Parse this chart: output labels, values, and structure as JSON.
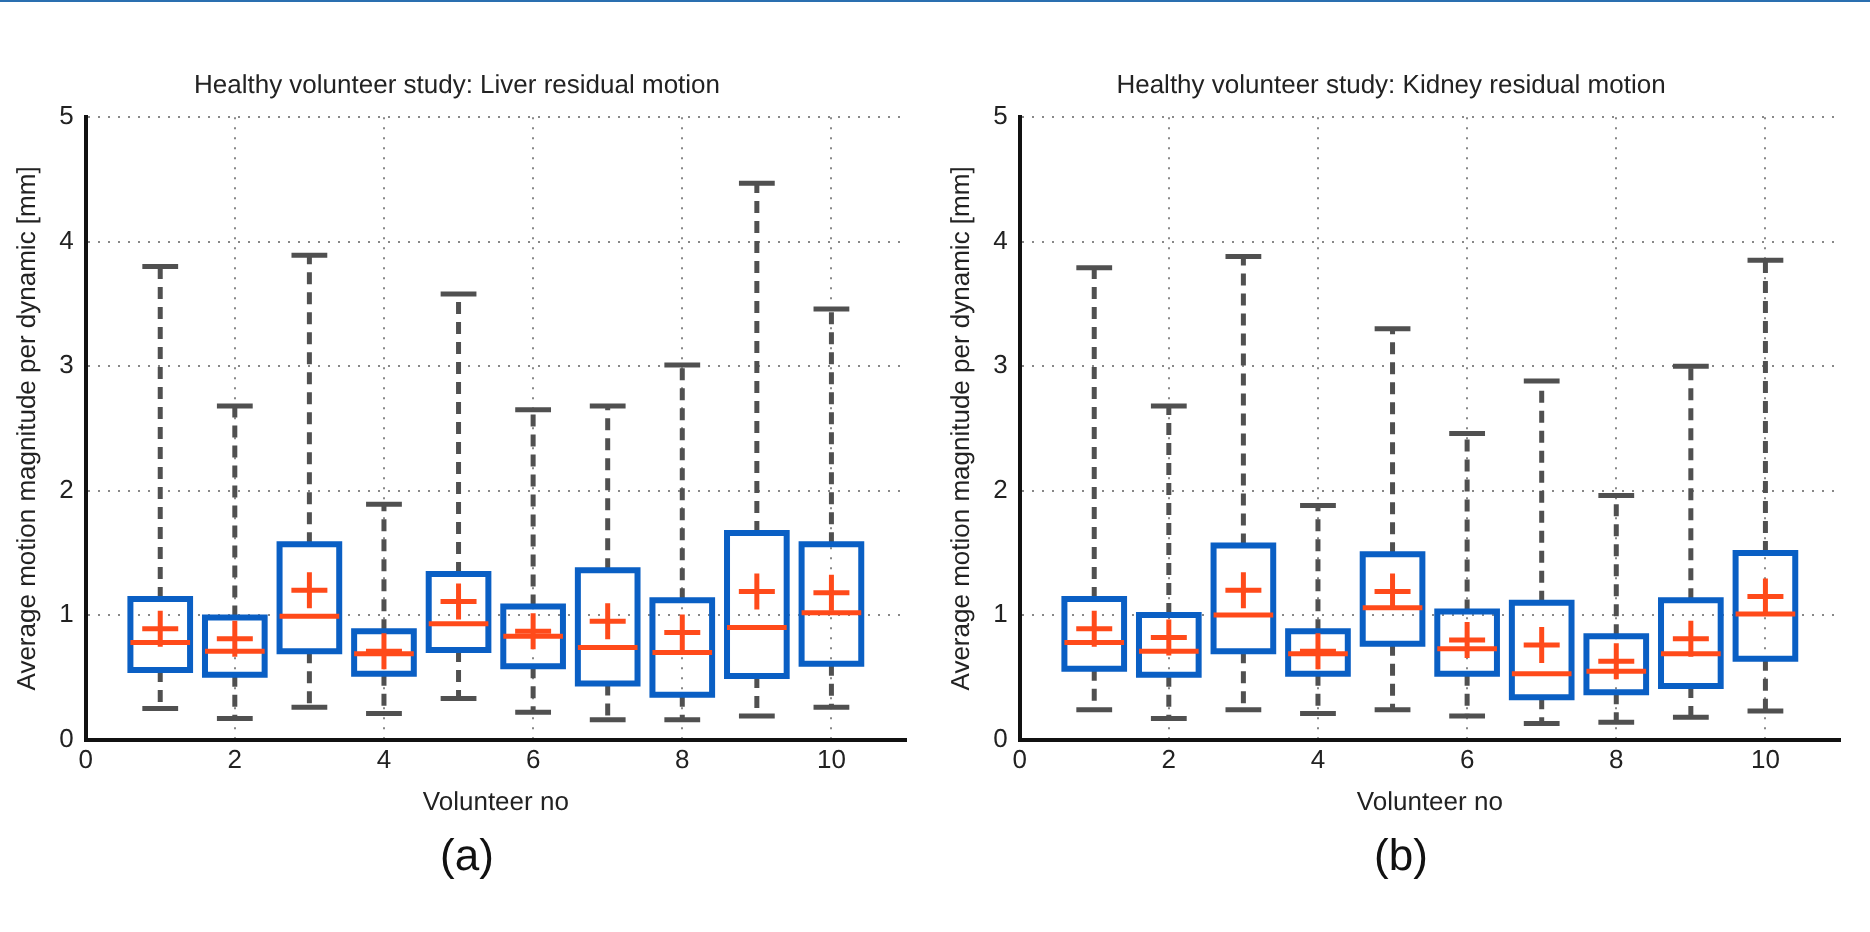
{
  "chart_data": [
    {
      "type": "box",
      "title": "Healthy volunteer study: Liver residual motion",
      "xlabel": "Volunteer no",
      "ylabel": "Average motion magnitude per dynamic [mm]",
      "annotations": [
        "(a)"
      ],
      "x": [
        1,
        2,
        3,
        4,
        5,
        6,
        7,
        8,
        9,
        10
      ],
      "xlim": [
        0,
        11
      ],
      "xticks": [
        0,
        2,
        4,
        6,
        8,
        10
      ],
      "ylim": [
        0,
        5
      ],
      "yticks": [
        0,
        1,
        2,
        3,
        4,
        5
      ],
      "grid": true,
      "series": [
        {
          "color": "#0a5fc4",
          "boxes": [
            {
              "low": 0.25,
              "q1": 0.56,
              "median": 0.78,
              "q3": 1.13,
              "high": 3.8,
              "mean": 0.89
            },
            {
              "low": 0.17,
              "q1": 0.52,
              "median": 0.71,
              "q3": 0.98,
              "high": 2.68,
              "mean": 0.81
            },
            {
              "low": 0.26,
              "q1": 0.71,
              "median": 0.99,
              "q3": 1.57,
              "high": 3.89,
              "mean": 1.2
            },
            {
              "low": 0.21,
              "q1": 0.53,
              "median": 0.69,
              "q3": 0.87,
              "high": 1.89,
              "mean": 0.71
            },
            {
              "low": 0.33,
              "q1": 0.72,
              "median": 0.93,
              "q3": 1.33,
              "high": 3.58,
              "mean": 1.11
            },
            {
              "low": 0.22,
              "q1": 0.59,
              "median": 0.83,
              "q3": 1.07,
              "high": 2.65,
              "mean": 0.87
            },
            {
              "low": 0.16,
              "q1": 0.45,
              "median": 0.74,
              "q3": 1.36,
              "high": 2.68,
              "mean": 0.95
            },
            {
              "low": 0.16,
              "q1": 0.36,
              "median": 0.7,
              "q3": 1.12,
              "high": 3.01,
              "mean": 0.86
            },
            {
              "low": 0.19,
              "q1": 0.51,
              "median": 0.9,
              "q3": 1.66,
              "high": 4.47,
              "mean": 1.19
            },
            {
              "low": 0.26,
              "q1": 0.61,
              "median": 1.02,
              "q3": 1.57,
              "high": 3.46,
              "mean": 1.18
            }
          ]
        }
      ]
    },
    {
      "type": "box",
      "title": "Healthy volunteer study: Kidney residual motion",
      "xlabel": "Volunteer no",
      "ylabel": "Average motion magnitude per dynamic [mm]",
      "annotations": [
        "(b)"
      ],
      "x": [
        1,
        2,
        3,
        4,
        5,
        6,
        7,
        8,
        9,
        10
      ],
      "xlim": [
        0,
        11
      ],
      "xticks": [
        0,
        2,
        4,
        6,
        8,
        10
      ],
      "ylim": [
        0,
        5
      ],
      "yticks": [
        0,
        1,
        2,
        3,
        4,
        5
      ],
      "grid": true,
      "series": [
        {
          "color": "#0a5fc4",
          "boxes": [
            {
              "low": 0.24,
              "q1": 0.57,
              "median": 0.78,
              "q3": 1.13,
              "high": 3.79,
              "mean": 0.89
            },
            {
              "low": 0.17,
              "q1": 0.52,
              "median": 0.71,
              "q3": 1.0,
              "high": 2.68,
              "mean": 0.82
            },
            {
              "low": 0.24,
              "q1": 0.71,
              "median": 1.0,
              "q3": 1.56,
              "high": 3.88,
              "mean": 1.2
            },
            {
              "low": 0.21,
              "q1": 0.53,
              "median": 0.69,
              "q3": 0.87,
              "high": 1.88,
              "mean": 0.71
            },
            {
              "low": 0.24,
              "q1": 0.77,
              "median": 1.06,
              "q3": 1.49,
              "high": 3.3,
              "mean": 1.19
            },
            {
              "low": 0.19,
              "q1": 0.53,
              "median": 0.73,
              "q3": 1.03,
              "high": 2.46,
              "mean": 0.8
            },
            {
              "low": 0.13,
              "q1": 0.34,
              "median": 0.53,
              "q3": 1.1,
              "high": 2.88,
              "mean": 0.76
            },
            {
              "low": 0.14,
              "q1": 0.38,
              "median": 0.55,
              "q3": 0.83,
              "high": 1.96,
              "mean": 0.63
            },
            {
              "low": 0.18,
              "q1": 0.43,
              "median": 0.69,
              "q3": 1.12,
              "high": 3.0,
              "mean": 0.81
            },
            {
              "low": 0.23,
              "q1": 0.65,
              "median": 1.01,
              "q3": 1.5,
              "high": 3.85,
              "mean": 1.15
            }
          ]
        }
      ]
    }
  ]
}
